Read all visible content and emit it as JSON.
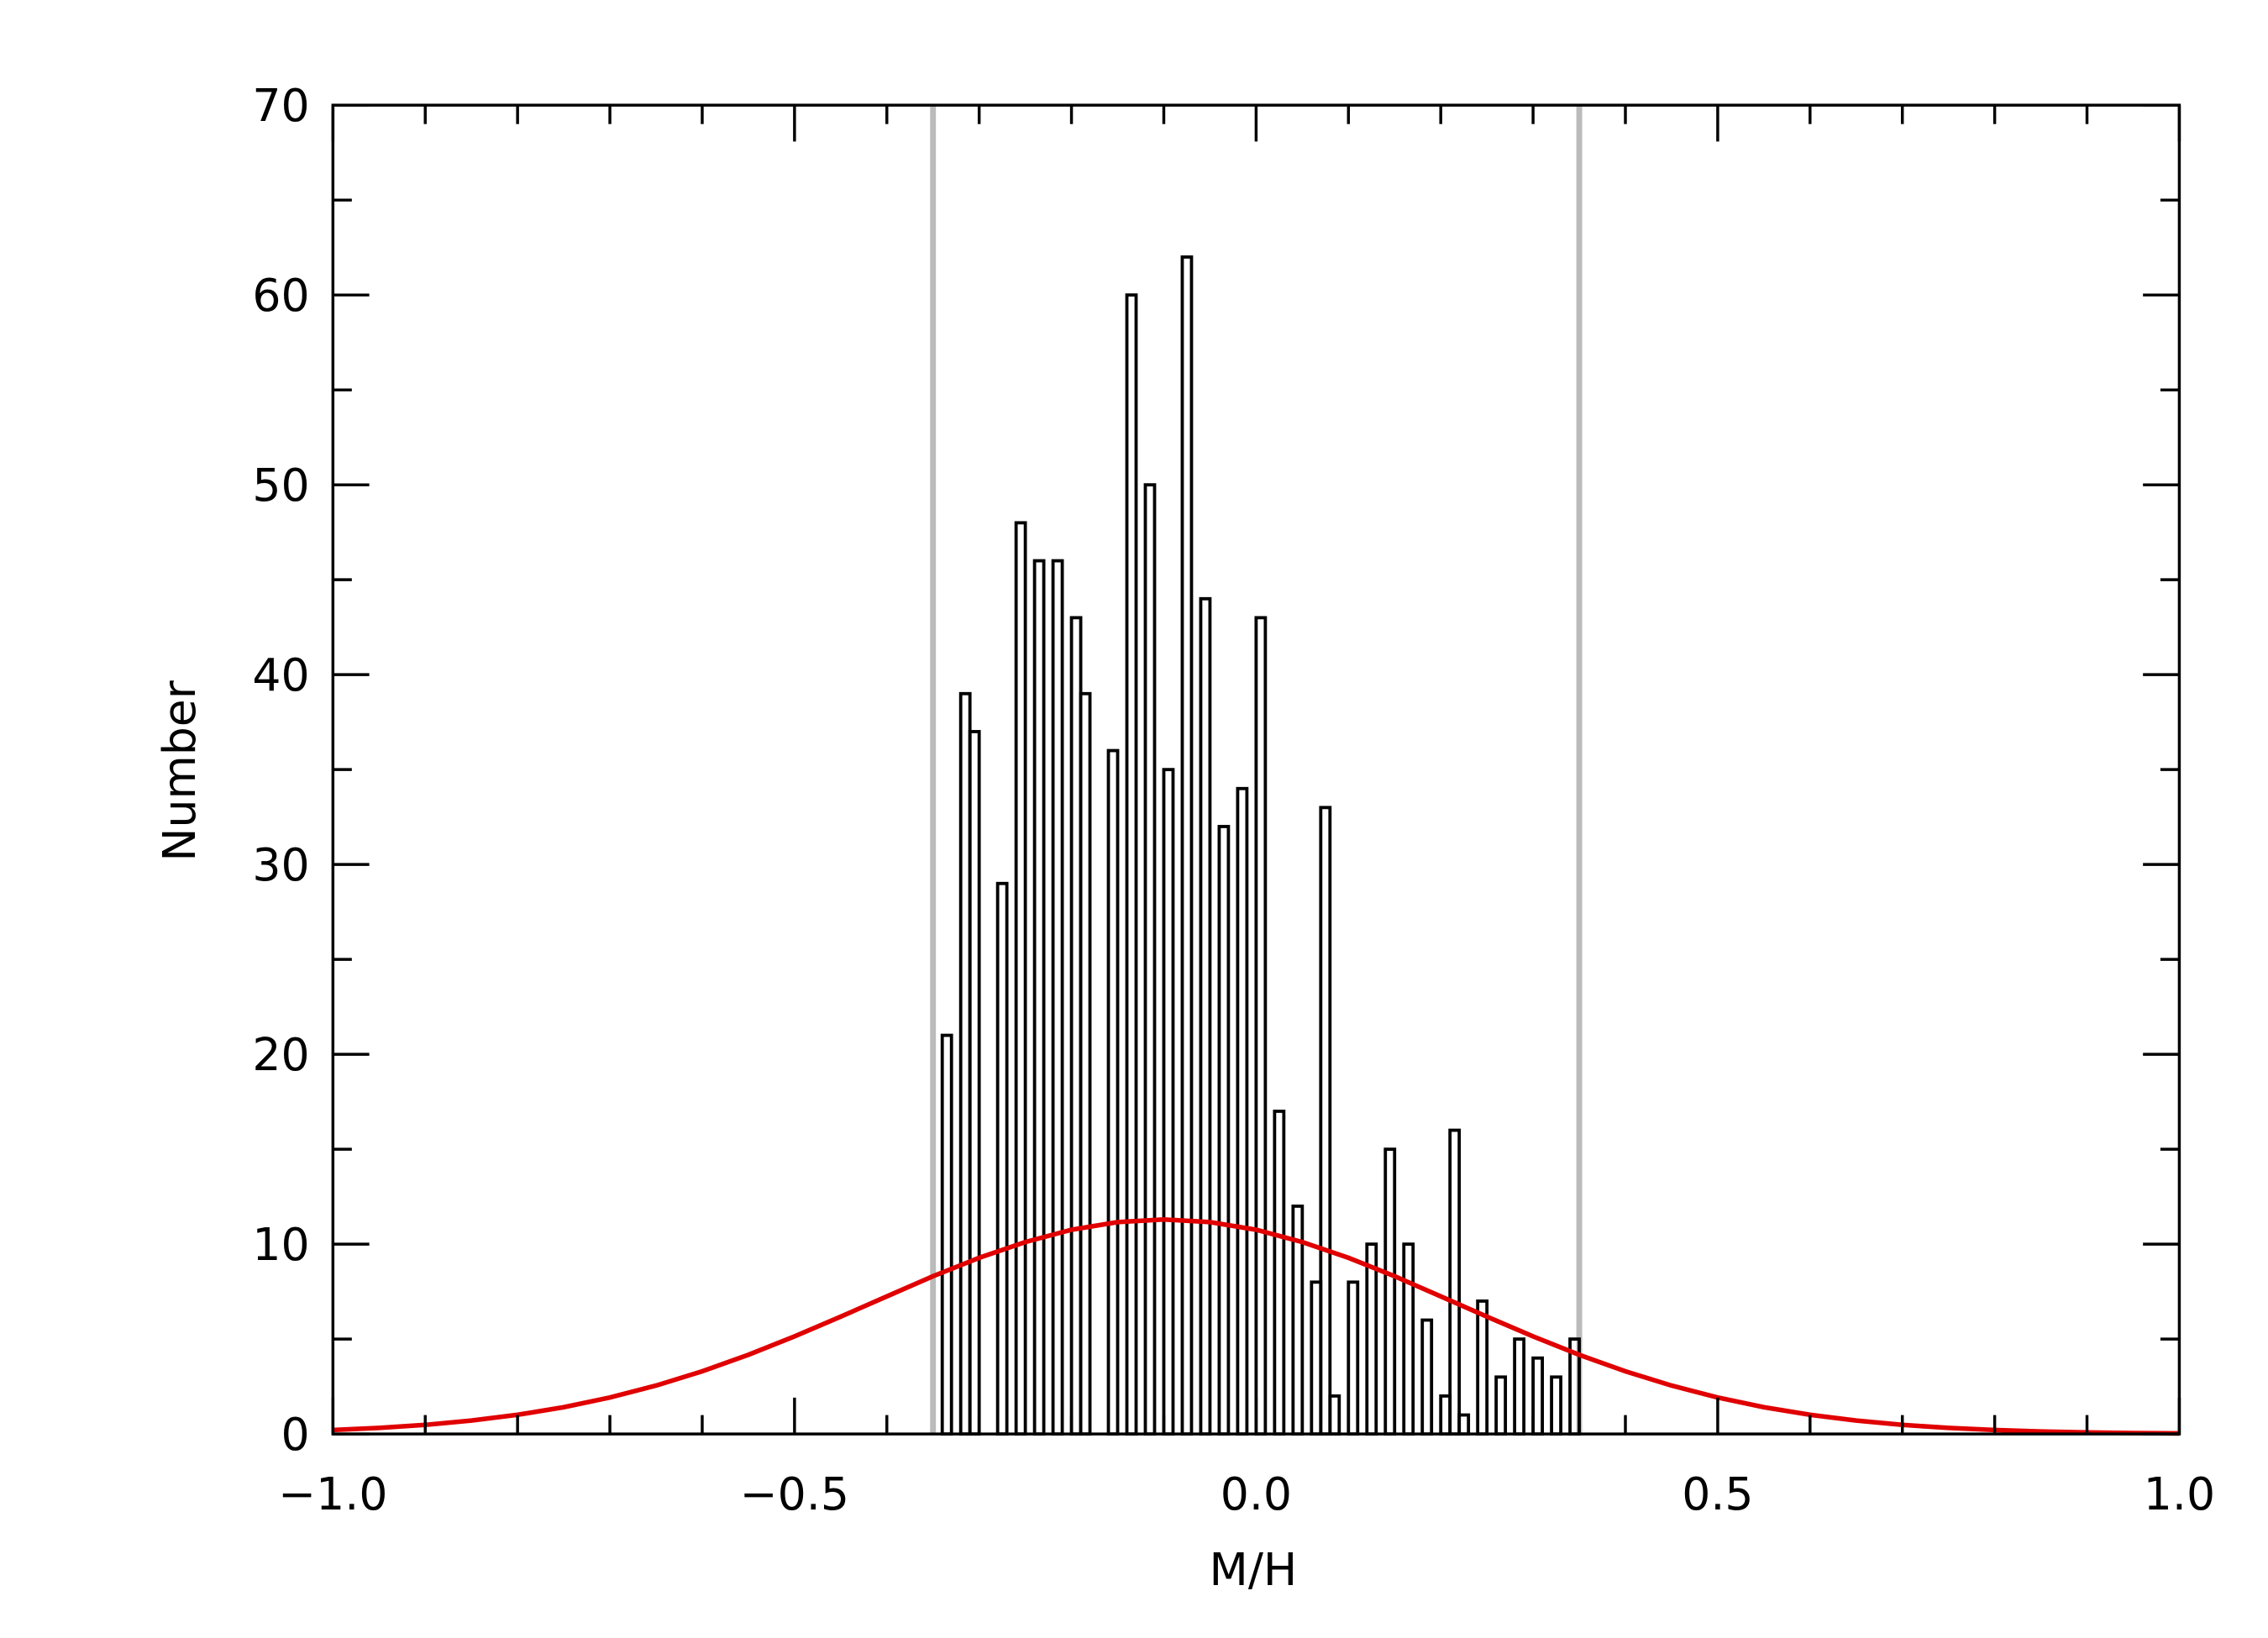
{
  "chart_data": {
    "type": "histogram",
    "xlabel": "M/H",
    "ylabel": "Number",
    "xlim": [
      -1.0,
      1.0
    ],
    "ylim": [
      0,
      70
    ],
    "xticks": [
      {
        "value": -1.0,
        "label": "−1.0"
      },
      {
        "value": -0.5,
        "label": "−0.5"
      },
      {
        "value": 0.0,
        "label": "0.0"
      },
      {
        "value": 0.5,
        "label": "0.5"
      },
      {
        "value": 1.0,
        "label": "1.0"
      }
    ],
    "yticks": [
      0,
      10,
      20,
      30,
      40,
      50,
      60,
      70
    ],
    "color": "#000000",
    "bins": [
      -0.35,
      -0.34,
      -0.33,
      -0.32,
      -0.31,
      -0.3,
      -0.29,
      -0.28,
      -0.27,
      -0.26,
      -0.25,
      -0.24,
      -0.23,
      -0.22,
      -0.21,
      -0.2,
      -0.19,
      -0.18,
      -0.17,
      -0.16,
      -0.15,
      -0.14,
      -0.13,
      -0.12,
      -0.11,
      -0.1,
      -0.09,
      -0.08,
      -0.07,
      -0.06,
      -0.05,
      -0.04,
      -0.03,
      -0.02,
      -0.01,
      0.0,
      0.01,
      0.02,
      0.03,
      0.04,
      0.05,
      0.06,
      0.07,
      0.08,
      0.09,
      0.1,
      0.11,
      0.12,
      0.13,
      0.14,
      0.15,
      0.16,
      0.17,
      0.18,
      0.19,
      0.2,
      0.21,
      0.22,
      0.23,
      0.24,
      0.25,
      0.26,
      0.27,
      0.28,
      0.29,
      0.3,
      0.31,
      0.32,
      0.33,
      0.34,
      0.35
    ],
    "counts": [
      0,
      21,
      0,
      39,
      37,
      0,
      0,
      29,
      0,
      48,
      0,
      46,
      0,
      46,
      0,
      43,
      39,
      0,
      0,
      36,
      0,
      60,
      0,
      50,
      0,
      35,
      0,
      62,
      0,
      44,
      0,
      32,
      0,
      34,
      0,
      43,
      0,
      17,
      0,
      12,
      0,
      8,
      33,
      2,
      0,
      8,
      0,
      10,
      0,
      15,
      0,
      10,
      0,
      6,
      0,
      2,
      16,
      1,
      0,
      7,
      0,
      3,
      0,
      5,
      0,
      4,
      0,
      3,
      0,
      5
    ],
    "fit": {
      "color": "#e00000",
      "x": [
        -1.0,
        -0.95,
        -0.9,
        -0.85,
        -0.8,
        -0.75,
        -0.7,
        -0.65,
        -0.6,
        -0.55,
        -0.5,
        -0.45,
        -0.4,
        -0.35,
        -0.3,
        -0.25,
        -0.2,
        -0.15,
        -0.1,
        -0.05,
        0.0,
        0.05,
        0.1,
        0.15,
        0.2,
        0.25,
        0.3,
        0.35,
        0.4,
        0.45,
        0.5,
        0.55,
        0.6,
        0.65,
        0.7,
        0.75,
        0.8,
        0.85,
        0.9,
        0.95,
        1.0
      ],
      "values": [
        0.21,
        0.32,
        0.48,
        0.71,
        1.01,
        1.41,
        1.92,
        2.55,
        3.3,
        4.17,
        5.14,
        6.18,
        7.25,
        8.31,
        9.28,
        10.11,
        10.76,
        11.16,
        11.3,
        11.16,
        10.76,
        10.11,
        9.28,
        8.31,
        7.25,
        6.18,
        5.14,
        4.17,
        3.3,
        2.55,
        1.92,
        1.41,
        1.01,
        0.71,
        0.48,
        0.32,
        0.21,
        0.13,
        0.08,
        0.05,
        0.03
      ]
    },
    "reference_lines": {
      "color": "#bbbbbb",
      "x": [
        -0.35,
        0.35
      ]
    }
  }
}
